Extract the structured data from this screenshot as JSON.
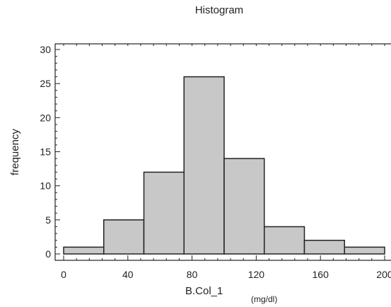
{
  "chart_data": {
    "type": "bar",
    "title": "Histogram",
    "xlabel": "B.Col_1",
    "xunit": "(mg/dl)",
    "ylabel": "frequency",
    "bin_edges": [
      0,
      25,
      50,
      75,
      100,
      125,
      150,
      175,
      200
    ],
    "values": [
      1,
      5,
      12,
      26,
      14,
      4,
      2,
      1
    ],
    "xlim": [
      0,
      200
    ],
    "ylim": [
      0,
      30
    ],
    "xticks": [
      0,
      40,
      80,
      120,
      160,
      200
    ],
    "yticks": [
      0,
      5,
      10,
      15,
      20,
      25,
      30
    ],
    "grid": false,
    "colors": {
      "bar_fill": "#c8c8c8",
      "bar_stroke": "#222222",
      "axis": "#222222"
    }
  }
}
